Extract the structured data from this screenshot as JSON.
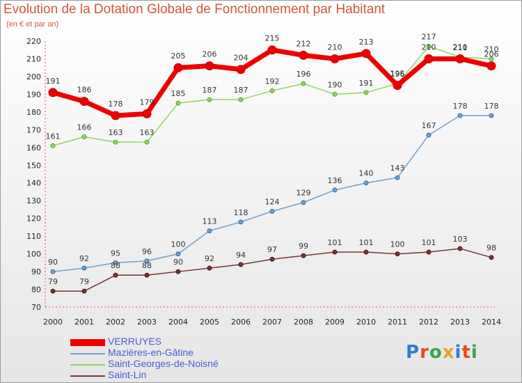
{
  "header": {
    "title": "Evolution de la Dotation Globale de Fonctionnement par Habitant",
    "subtitle": "(en € et par an)"
  },
  "logo": {
    "text": "Proxiti",
    "colors": [
      "#2a7fd4",
      "#e84b1c",
      "#3aa54a",
      "#e8a21c",
      "#2a7fd4",
      "#e84b1c",
      "#3aa54a"
    ]
  },
  "chart_data": {
    "type": "line",
    "title": "Evolution de la Dotation Globale de Fonctionnement par Habitant",
    "subtitle": "(en € et par an)",
    "xlabel": "",
    "ylabel": "",
    "ylim": [
      70,
      220
    ],
    "yticks": [
      70,
      80,
      90,
      100,
      110,
      120,
      130,
      140,
      150,
      160,
      170,
      180,
      190,
      200,
      210,
      220
    ],
    "grid": false,
    "legend_position": "bottom-left",
    "x": [
      "2000",
      "2001",
      "2002",
      "2003",
      "2004",
      "2005",
      "2006",
      "2007",
      "2008",
      "2009",
      "2010",
      "2011",
      "2012",
      "2013",
      "2014"
    ],
    "series": [
      {
        "name": "VERRUYES",
        "color": "#ee0000",
        "values": [
          191,
          186,
          178,
          179,
          205,
          206,
          204,
          215,
          212,
          210,
          213,
          195,
          210,
          210,
          206
        ]
      },
      {
        "name": "Mazières-en-Gâtine",
        "color": "#6fa1d0",
        "values": [
          90,
          92,
          95,
          96,
          100,
          113,
          118,
          124,
          129,
          136,
          140,
          143,
          167,
          178,
          178
        ]
      },
      {
        "name": "Saint-Georges-de-Noisné",
        "color": "#8fd65f",
        "values": [
          161,
          166,
          163,
          163,
          185,
          187,
          187,
          192,
          196,
          190,
          191,
          196,
          217,
          211,
          210
        ]
      },
      {
        "name": "Saint-Lin",
        "color": "#7a3333",
        "values": [
          79,
          79,
          88,
          88,
          90,
          92,
          94,
          97,
          99,
          101,
          101,
          100,
          101,
          103,
          98
        ]
      }
    ]
  }
}
